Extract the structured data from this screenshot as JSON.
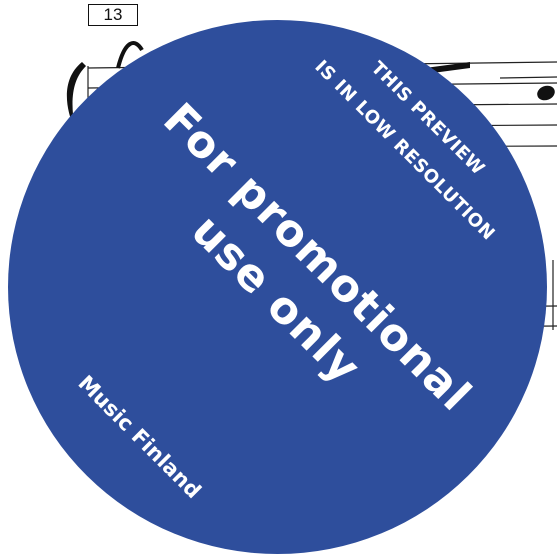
{
  "score": {
    "measure_number": "13"
  },
  "watermark": {
    "preview_line_1": "THIS PREVIEW",
    "preview_line_2": "IS IN LOW RESOLUTION",
    "promo_line_1": "For promotional",
    "promo_line_2": "use only",
    "publisher": "Music Finland",
    "color": "#2e4e9c"
  }
}
